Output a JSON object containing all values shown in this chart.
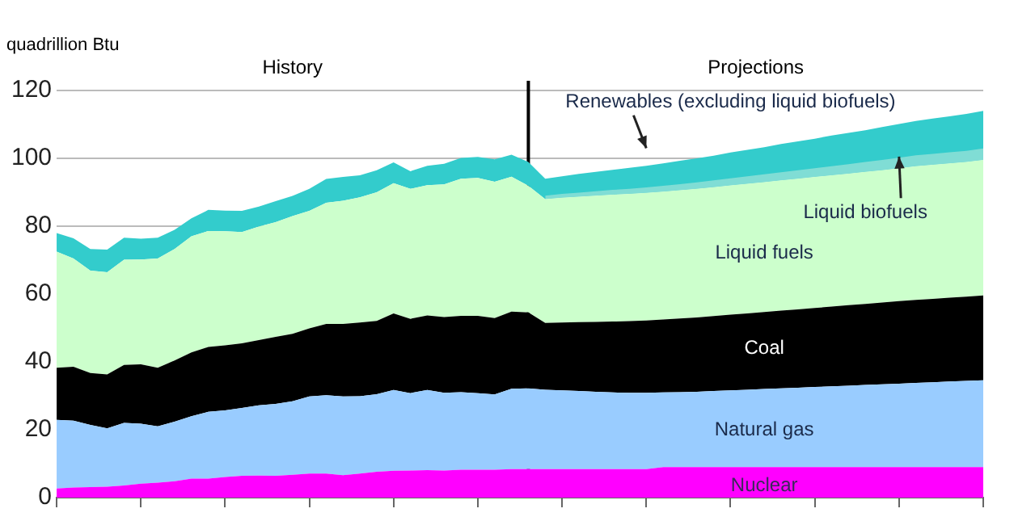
{
  "chart_data": {
    "type": "area",
    "stacked": true,
    "ylabel": "quadrillion Btu",
    "categories": [
      null,
      null,
      null,
      null,
      null,
      null,
      null,
      null,
      null,
      null,
      null,
      null,
      null,
      null,
      null,
      null,
      null,
      null,
      null,
      null,
      null,
      null,
      null,
      null,
      null,
      null,
      null,
      null,
      null,
      null,
      null,
      null,
      null,
      null,
      null,
      null,
      null,
      null,
      null,
      null,
      null,
      null,
      null,
      null,
      null,
      null,
      null,
      null,
      null,
      null,
      null,
      null,
      null,
      null,
      null,
      null
    ],
    "series": [
      {
        "name": "Nuclear",
        "color": "#ff00ff",
        "values": [
          2.7,
          3.0,
          3.1,
          3.2,
          3.6,
          4.1,
          4.4,
          4.8,
          5.6,
          5.6,
          6.1,
          6.4,
          6.5,
          6.4,
          6.7,
          7.1,
          7.1,
          6.6,
          7.1,
          7.6,
          7.9,
          8.0,
          8.1,
          8.0,
          8.2,
          8.2,
          8.2,
          8.4,
          8.4,
          8.4,
          8.4,
          8.4,
          8.4,
          8.4,
          8.4,
          8.4,
          9.0,
          9.0,
          9.0,
          9.0,
          9.0,
          9.0,
          9.0,
          9.0,
          9.0,
          9.0,
          9.0,
          9.0,
          9.0,
          9.0,
          9.0,
          9.0,
          9.0,
          9.0,
          9.0,
          9.0
        ]
      },
      {
        "name": "Natural gas",
        "color": "#99ccff",
        "values": [
          20.2,
          19.7,
          18.3,
          17.2,
          18.4,
          17.7,
          16.6,
          17.6,
          18.4,
          19.7,
          19.6,
          20.0,
          20.7,
          21.2,
          21.7,
          22.7,
          23.1,
          23.2,
          22.8,
          22.9,
          23.8,
          22.8,
          23.6,
          22.9,
          22.9,
          22.6,
          22.2,
          23.7,
          23.8,
          23.4,
          23.2,
          23.0,
          22.8,
          22.6,
          22.5,
          22.5,
          22.0,
          22.1,
          22.2,
          22.4,
          22.6,
          22.8,
          23.0,
          23.2,
          23.4,
          23.6,
          23.8,
          24.0,
          24.2,
          24.4,
          24.6,
          24.8,
          25.0,
          25.2,
          25.4,
          25.6
        ]
      },
      {
        "name": "Coal",
        "color": "#000000",
        "values": [
          15.4,
          15.9,
          15.3,
          15.9,
          17.1,
          17.5,
          17.3,
          18.0,
          18.8,
          19.1,
          19.2,
          19.1,
          19.2,
          19.8,
          19.9,
          20.1,
          21.0,
          21.4,
          21.7,
          21.6,
          22.6,
          21.9,
          22.0,
          22.3,
          22.5,
          22.8,
          22.5,
          22.7,
          22.4,
          19.7,
          20.0,
          20.3,
          20.6,
          20.9,
          21.1,
          21.3,
          21.5,
          21.7,
          21.9,
          22.1,
          22.3,
          22.5,
          22.7,
          22.9,
          23.1,
          23.3,
          23.5,
          23.7,
          23.9,
          24.1,
          24.3,
          24.5,
          24.6,
          24.7,
          24.8,
          25.0
        ]
      },
      {
        "name": "Liquid fuels",
        "color": "#ccffcc",
        "values": [
          34.2,
          31.9,
          30.2,
          30.1,
          31.0,
          30.9,
          32.2,
          32.9,
          34.2,
          34.2,
          33.6,
          32.8,
          33.5,
          33.8,
          34.7,
          34.6,
          35.7,
          36.3,
          36.9,
          37.9,
          38.4,
          38.3,
          38.4,
          39.1,
          40.4,
          40.6,
          40.2,
          39.8,
          37.3,
          36.5,
          36.8,
          37.0,
          37.2,
          37.4,
          37.5,
          37.6,
          37.7,
          37.8,
          37.9,
          38.0,
          38.1,
          38.2,
          38.3,
          38.4,
          38.5,
          38.6,
          38.7,
          38.8,
          38.9,
          39.0,
          39.2,
          39.4,
          39.5,
          39.6,
          39.7,
          39.9
        ]
      },
      {
        "name": "Liquid biofuels",
        "color": "#80ddd5",
        "values": [
          null,
          null,
          null,
          null,
          null,
          null,
          null,
          null,
          null,
          null,
          null,
          null,
          null,
          null,
          null,
          null,
          null,
          null,
          null,
          null,
          null,
          null,
          null,
          null,
          null,
          null,
          null,
          null,
          null,
          1.0,
          1.1,
          1.2,
          1.3,
          1.4,
          1.5,
          1.6,
          1.7,
          1.8,
          1.9,
          2.0,
          2.1,
          2.2,
          2.3,
          2.4,
          2.5,
          2.6,
          2.7,
          2.8,
          2.9,
          3.0,
          3.1,
          3.2,
          3.2,
          3.3,
          3.3,
          3.4
        ]
      },
      {
        "name": "Renewables (excluding liquid biofuels)",
        "color": "#33cccc",
        "values": [
          5.5,
          5.9,
          6.4,
          6.7,
          6.5,
          6.1,
          6.1,
          5.6,
          5.3,
          6.2,
          6.1,
          6.2,
          5.9,
          6.2,
          5.9,
          6.5,
          7.0,
          7.0,
          6.5,
          6.5,
          6.1,
          5.2,
          5.7,
          6.1,
          6.1,
          6.2,
          6.6,
          6.5,
          7.0,
          5.0,
          5.2,
          5.5,
          5.7,
          5.9,
          6.2,
          6.4,
          6.6,
          6.9,
          7.1,
          7.3,
          7.6,
          7.8,
          8.0,
          8.3,
          8.5,
          8.7,
          9.0,
          9.2,
          9.4,
          9.7,
          9.9,
          10.1,
          10.4,
          10.6,
          10.9,
          11.1
        ]
      }
    ],
    "ylim": [
      0,
      120
    ],
    "yticks": [
      0,
      20,
      40,
      60,
      80,
      100,
      120
    ],
    "grid": "y",
    "legend": false,
    "tick_labels": "y",
    "annotations": [
      "History",
      "Projections"
    ]
  }
}
